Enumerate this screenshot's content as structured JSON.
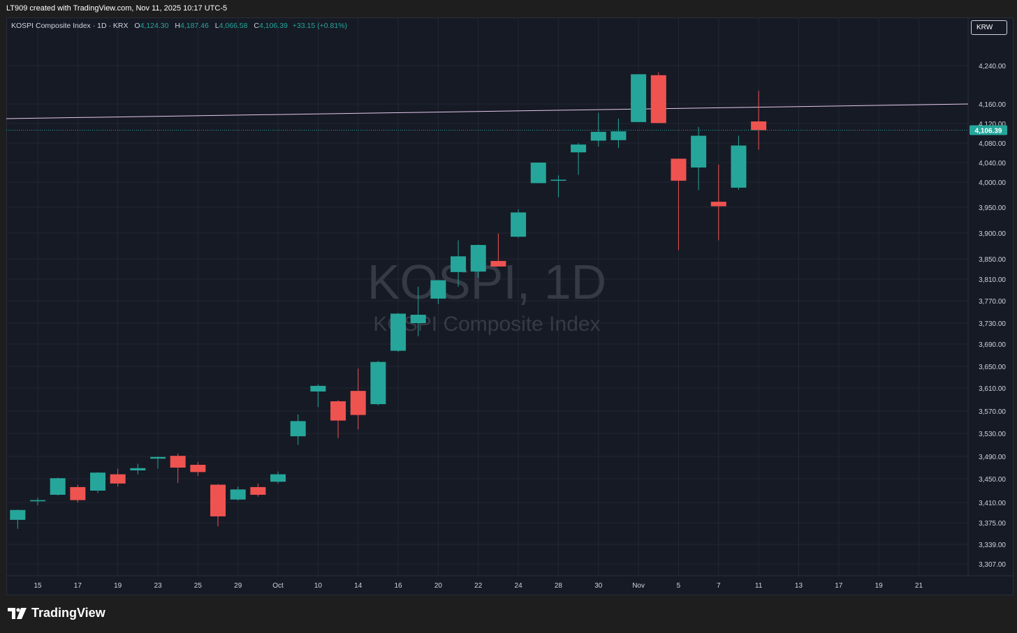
{
  "header": {
    "attribution": "LT909 created with TradingView.com, Nov 11, 2025 10:17 UTC-5"
  },
  "legend": {
    "symbol": "KOSPI Composite Index · 1D · KRX",
    "open_label": "O",
    "open": "4,124.30",
    "high_label": "H",
    "high": "4,187.46",
    "low_label": "L",
    "low": "4,066.58",
    "close_label": "C",
    "close": "4,106.39",
    "change": "+33.15 (+0.81%)"
  },
  "currency_button": "KRW",
  "watermark": {
    "title": "KOSPI, 1D",
    "subtitle": "KOSPI Composite Index"
  },
  "footer": {
    "brand": "TradingView"
  },
  "colors": {
    "up": "#26a69a",
    "down": "#ef5350",
    "background": "#161a25",
    "grid": "#232733",
    "trendline": "#e6c9ec"
  },
  "chart_data": {
    "type": "candlestick",
    "title": "KOSPI, 1D",
    "price_scale_labels": [
      "4,240.00",
      "4,160.00",
      "4,120.00",
      "4,080.00",
      "4,040.00",
      "4,000.00",
      "3,950.00",
      "3,900.00",
      "3,850.00",
      "3,810.00",
      "3,770.00",
      "3,730.00",
      "3,690.00",
      "3,650.00",
      "3,610.00",
      "3,570.00",
      "3,530.00",
      "3,490.00",
      "3,450.00",
      "3,410.00",
      "3,375.00",
      "3,339.00",
      "3,307.00"
    ],
    "price_scale_values": [
      4240,
      4160,
      4120,
      4080,
      4040,
      4000,
      3950,
      3900,
      3850,
      3810,
      3770,
      3730,
      3690,
      3650,
      3610,
      3570,
      3530,
      3490,
      3450,
      3410,
      3375,
      3339,
      3307
    ],
    "time_axis_labels": [
      "15",
      "17",
      "19",
      "23",
      "25",
      "29",
      "Oct",
      "10",
      "14",
      "16",
      "20",
      "22",
      "24",
      "28",
      "30",
      "Nov",
      "5",
      "7",
      "11",
      "13",
      "17",
      "19",
      "21"
    ],
    "time_axis_slots": [
      1.5,
      3.5,
      5.5,
      7.5,
      9.5,
      11.5,
      13.5,
      15.5,
      17.5,
      19.5,
      21.5,
      23.5,
      25.5,
      27.5,
      29.5,
      31.5,
      33.5,
      35.5,
      37.5,
      39.5,
      41.5,
      43.5,
      45.5
    ],
    "last_price": 4106.39,
    "last_price_label": "4,106.39",
    "trendline": {
      "start_slot": 0,
      "start_price": 4130,
      "end_slot": 48,
      "end_price": 4160
    },
    "candles": [
      {
        "slot": 0.5,
        "o": 3380,
        "h": 3398,
        "l": 3365,
        "c": 3397
      },
      {
        "slot": 1.5,
        "o": 3412,
        "h": 3418,
        "l": 3405,
        "c": 3414
      },
      {
        "slot": 2.5,
        "o": 3423,
        "h": 3452,
        "l": 3422,
        "c": 3451
      },
      {
        "slot": 3.5,
        "o": 3436,
        "h": 3440,
        "l": 3410,
        "c": 3414
      },
      {
        "slot": 4.5,
        "o": 3430,
        "h": 3462,
        "l": 3426,
        "c": 3461
      },
      {
        "slot": 5.5,
        "o": 3458,
        "h": 3468,
        "l": 3437,
        "c": 3442
      },
      {
        "slot": 6.5,
        "o": 3465,
        "h": 3477,
        "l": 3458,
        "c": 3469
      },
      {
        "slot": 7.5,
        "o": 3486,
        "h": 3490,
        "l": 3468,
        "c": 3489
      },
      {
        "slot": 8.5,
        "o": 3491,
        "h": 3495,
        "l": 3443,
        "c": 3470
      },
      {
        "slot": 9.5,
        "o": 3475,
        "h": 3480,
        "l": 3455,
        "c": 3462
      },
      {
        "slot": 10.5,
        "o": 3440,
        "h": 3441,
        "l": 3369,
        "c": 3386
      },
      {
        "slot": 11.5,
        "o": 3415,
        "h": 3437,
        "l": 3413,
        "c": 3432
      },
      {
        "slot": 12.5,
        "o": 3436,
        "h": 3442,
        "l": 3420,
        "c": 3423
      },
      {
        "slot": 13.5,
        "o": 3445,
        "h": 3463,
        "l": 3442,
        "c": 3458
      },
      {
        "slot": 14.5,
        "o": 3525,
        "h": 3564,
        "l": 3510,
        "c": 3552
      },
      {
        "slot": 15.5,
        "o": 3604,
        "h": 3617,
        "l": 3577,
        "c": 3614
      },
      {
        "slot": 16.5,
        "o": 3587,
        "h": 3589,
        "l": 3522,
        "c": 3553
      },
      {
        "slot": 17.5,
        "o": 3605,
        "h": 3646,
        "l": 3537,
        "c": 3563
      },
      {
        "slot": 18.5,
        "o": 3582,
        "h": 3660,
        "l": 3580,
        "c": 3658
      },
      {
        "slot": 19.5,
        "o": 3678,
        "h": 3748,
        "l": 3676,
        "c": 3747
      },
      {
        "slot": 20.5,
        "o": 3730,
        "h": 3796,
        "l": 3705,
        "c": 3745
      },
      {
        "slot": 21.5,
        "o": 3774,
        "h": 3809,
        "l": 3764,
        "c": 3808
      },
      {
        "slot": 22.5,
        "o": 3824,
        "h": 3886,
        "l": 3796,
        "c": 3855
      },
      {
        "slot": 23.5,
        "o": 3825,
        "h": 3878,
        "l": 3813,
        "c": 3877
      },
      {
        "slot": 24.5,
        "o": 3846,
        "h": 3899,
        "l": 3835,
        "c": 3835
      },
      {
        "slot": 25.5,
        "o": 3893,
        "h": 3946,
        "l": 3891,
        "c": 3940
      },
      {
        "slot": 26.5,
        "o": 3998,
        "h": 4040,
        "l": 3998,
        "c": 4040
      },
      {
        "slot": 27.5,
        "o": 4005,
        "h": 4014,
        "l": 3970,
        "c": 4005
      },
      {
        "slot": 28.5,
        "o": 4061,
        "h": 4080,
        "l": 4015,
        "c": 4077
      },
      {
        "slot": 29.5,
        "o": 4085,
        "h": 4142,
        "l": 4073,
        "c": 4103
      },
      {
        "slot": 30.5,
        "o": 4086,
        "h": 4130,
        "l": 4070,
        "c": 4104
      },
      {
        "slot": 31.5,
        "o": 4123,
        "h": 4222,
        "l": 4123,
        "c": 4222
      },
      {
        "slot": 32.5,
        "o": 4220,
        "h": 4226,
        "l": 4121,
        "c": 4121
      },
      {
        "slot": 33.5,
        "o": 4048,
        "h": 4048,
        "l": 3867,
        "c": 4003
      },
      {
        "slot": 34.5,
        "o": 4030,
        "h": 4113,
        "l": 3984,
        "c": 4095
      },
      {
        "slot": 35.5,
        "o": 3961,
        "h": 4036,
        "l": 3886,
        "c": 3952
      },
      {
        "slot": 36.5,
        "o": 3989,
        "h": 4095,
        "l": 3985,
        "c": 4075
      },
      {
        "slot": 37.5,
        "o": 4124.3,
        "h": 4187.46,
        "l": 4066.58,
        "c": 4106.39
      }
    ]
  }
}
